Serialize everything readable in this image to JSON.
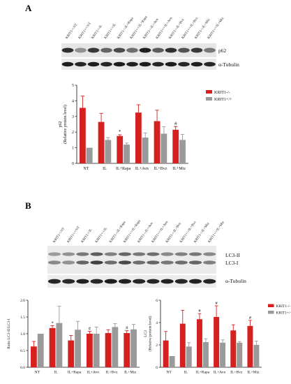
{
  "panel_a": {
    "letter": "A",
    "lane_labels": [
      "KRIT1-/-NT",
      "KRIT1+/+NT",
      "KRIT1-/-IL",
      "KRIT1+/+IL",
      "KRIT1-/-IL+Rapa",
      "KRIT1+/+IL+Rapa",
      "KRIT1-/-IL+Avn",
      "KRIT1+/+IL+Avn",
      "KRIT1-/-IL+Bvz",
      "KRIT1+/+IL+Bvz",
      "KRIT1-/-IL+Miz",
      "KRIT1+/+IL+Miz"
    ],
    "blot_labels": {
      "p62": "p62",
      "tubulin": "α-Tubulin"
    }
  },
  "panel_b": {
    "letter": "B",
    "lane_labels": [
      "KRIT1-/-NT",
      "KRIT1+/+NT",
      "KRIT1-/-IL",
      "KRIT1+/+IL",
      "KRIT1-/-IL+Rapa",
      "KRIT1+/+IL+Rapa",
      "KRIT1-/-IL+Avn",
      "KRIT1+/+IL+Avn",
      "KRIT1-/-IL+Bvz",
      "KRIT1+/+IL+Bvz",
      "KRIT1-/-IL+Miz",
      "KRIT1+/+IL+Miz"
    ],
    "blot_labels": {
      "lc3_ii": "LC3-II",
      "lc3_i": "LC3-I",
      "tubulin": "α-Tubulin"
    }
  },
  "colors": {
    "ko": "#d62020",
    "wt": "#9a9a9a"
  },
  "chart_data": [
    {
      "type": "bar",
      "categories": [
        "NT",
        "IL",
        "IL+Rapa",
        "IL+Avn",
        "IL+Bvz",
        "IL+Miz"
      ],
      "series": [
        {
          "name": "KRIT1-/-",
          "values": [
            3.55,
            2.65,
            1.75,
            3.25,
            2.7,
            2.15
          ],
          "errors": [
            0.75,
            0.55,
            0.08,
            0.5,
            0.7,
            0.2
          ]
        },
        {
          "name": "KRIT1+/+",
          "values": [
            1.0,
            1.5,
            1.2,
            1.65,
            1.9,
            1.5
          ],
          "errors": [
            0.0,
            0.15,
            0.1,
            0.3,
            0.45,
            0.35
          ]
        }
      ],
      "markers": [
        {
          "category": "IL+Rapa",
          "text": "*"
        },
        {
          "category": "IL+Miz",
          "text": "#"
        }
      ],
      "ylabel": "p62",
      "ylabel2": "(Relative protein level)",
      "ylim": [
        0,
        5
      ],
      "yticks": [
        0,
        1,
        2,
        3,
        4,
        5
      ],
      "legend": "top-right"
    },
    {
      "type": "bar",
      "categories": [
        "NT",
        "IL",
        "IL+Rapa",
        "IL+Avn",
        "IL+Bvz",
        "IL+Miz"
      ],
      "series": [
        {
          "name": "KRIT1-/-",
          "values": [
            0.62,
            1.17,
            0.8,
            1.0,
            1.02,
            1.02
          ],
          "errors": [
            0.15,
            0.07,
            0.15,
            0.07,
            0.1,
            0.07
          ]
        },
        {
          "name": "KRIT1+/+",
          "values": [
            1.0,
            1.32,
            1.12,
            1.0,
            1.2,
            1.13
          ],
          "errors": [
            0.0,
            0.5,
            0.25,
            0.2,
            0.1,
            0.15
          ]
        }
      ],
      "markers": [
        {
          "category": "IL",
          "text": "*"
        },
        {
          "category": "IL+Avn",
          "text": "#"
        },
        {
          "category": "IL+Miz",
          "text": "#"
        }
      ],
      "ylabel": "Ratio LC3-II/LC3-I",
      "ylim": [
        0,
        2.0
      ],
      "yticks": [
        0,
        0.5,
        1.0,
        1.5,
        2.0
      ],
      "ytick_labels": [
        "0.0",
        "0.5",
        "1.0",
        "1.5",
        "2.0"
      ]
    },
    {
      "type": "bar",
      "categories": [
        "NT",
        "IL",
        "IL+Rapa",
        "IL+Avn",
        "IL+Bvz",
        "IL+Miz"
      ],
      "series": [
        {
          "name": "KRIT1-/-",
          "values": [
            2.4,
            3.9,
            4.3,
            4.5,
            3.3,
            3.7
          ],
          "errors": [
            0.8,
            1.2,
            0.5,
            1.0,
            0.5,
            0.5
          ]
        },
        {
          "name": "KRIT1+/+",
          "values": [
            1.0,
            1.85,
            2.25,
            2.2,
            2.2,
            2.0
          ],
          "errors": [
            0.0,
            0.35,
            0.3,
            0.25,
            0.1,
            0.35
          ]
        }
      ],
      "markers": [
        {
          "category": "IL+Rapa",
          "text": "#"
        },
        {
          "category": "IL+Avn",
          "text": "#"
        },
        {
          "category": "IL+Miz",
          "text": "#"
        }
      ],
      "ylabel": "LC3",
      "ylabel2": "(Relative protein level)",
      "ylim": [
        0,
        6
      ],
      "yticks": [
        0,
        2,
        4,
        6
      ],
      "legend": "top-right"
    }
  ]
}
